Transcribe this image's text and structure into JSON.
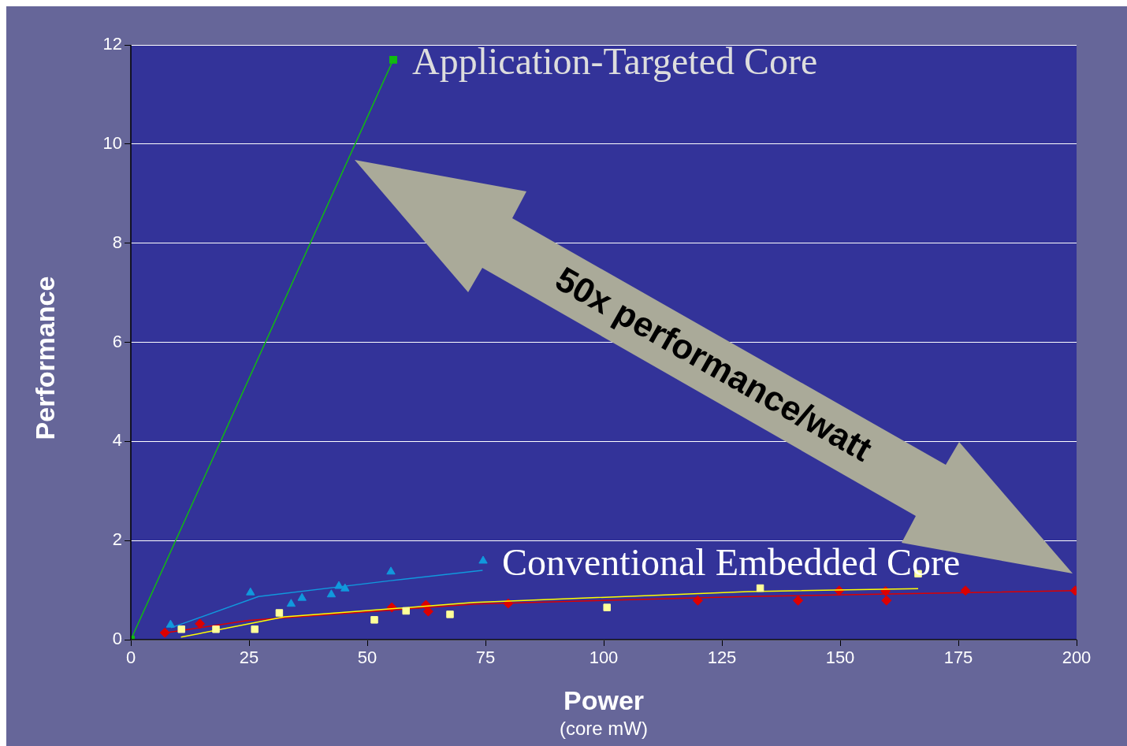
{
  "chart_data": {
    "type": "scatter",
    "xlabel": "Power\n(core mW)",
    "ylabel": "Performance",
    "xlim": [
      0,
      200
    ],
    "xticks": [
      0,
      25,
      50,
      75,
      100,
      125,
      150,
      175,
      200
    ],
    "ylim": [
      0,
      12
    ],
    "yticks": [
      0,
      2,
      4,
      6,
      8,
      10,
      12
    ],
    "grid": "y",
    "annotations": [
      {
        "text": "Application-Targeted Core",
        "x": 55.5,
        "y": 11.7
      },
      {
        "text": "Conventional Embedded Core",
        "x": 74.5,
        "y": 1.6
      },
      "50x performance/watt"
    ],
    "series": [
      {
        "type": "line",
        "color": "#11bb11",
        "marker": "square",
        "x": [
          0,
          55.5
        ],
        "values": [
          0,
          11.7
        ]
      },
      {
        "color": "#1199dd",
        "marker": "triangle",
        "x": [
          8.4,
          25.3,
          33.9,
          36.2,
          42.4,
          44.0,
          45.3,
          55.0,
          74.5
        ],
        "values": [
          0.3,
          0.95,
          0.72,
          0.84,
          0.91,
          1.08,
          1.03,
          1.37,
          1.59
        ]
      },
      {
        "type": "line",
        "color": "#1199dd",
        "marker": "none",
        "x": [
          8.5,
          27,
          54.9,
          74.4
        ],
        "values": [
          0.24,
          0.87,
          1.19,
          1.4
        ]
      },
      {
        "color": "#ffff99",
        "marker": "square",
        "x": [
          10.7,
          18,
          26.2,
          31.4,
          51.5,
          58.2,
          67.5,
          100.7,
          133.1,
          166.5
        ],
        "values": [
          0.21,
          0.21,
          0.21,
          0.54,
          0.4,
          0.58,
          0.51,
          0.65,
          1.04,
          1.33
        ]
      },
      {
        "type": "line",
        "color": "#ffff00",
        "marker": "none",
        "x": [
          10.6,
          32.5,
          72.5,
          130.5,
          166.5
        ],
        "values": [
          0.05,
          0.46,
          0.75,
          0.97,
          1.03
        ]
      },
      {
        "color": "#dd0000",
        "marker": "diamond",
        "x": [
          7.2,
          14.6,
          55.2,
          62.4,
          62.9,
          79.8,
          119.9,
          141.1,
          149.8,
          159.6,
          159.8,
          176.5,
          199.7
        ],
        "values": [
          0.14,
          0.32,
          0.65,
          0.7,
          0.57,
          0.73,
          0.79,
          0.79,
          0.99,
          0.98,
          0.79,
          0.99,
          0.99
        ]
      },
      {
        "type": "line",
        "color": "#dd0000",
        "marker": "none",
        "x": [
          6.8,
          25,
          72.8,
          130.5,
          199.7
        ],
        "values": [
          0.13,
          0.39,
          0.72,
          0.87,
          0.99
        ]
      }
    ]
  }
}
